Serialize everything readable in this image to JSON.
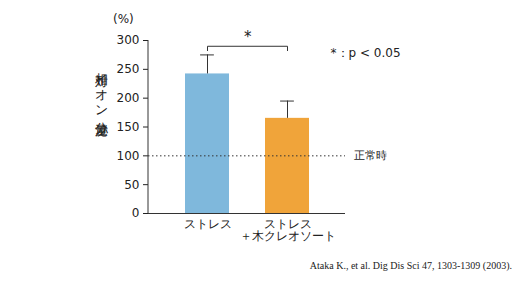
{
  "chart_data": {
    "type": "bar",
    "categories": [
      "ストレス",
      "ストレス\n＋木クレオソート"
    ],
    "values": [
      242,
      165
    ],
    "errors": [
      33,
      30
    ],
    "colors": [
      "#7fb8dc",
      "#f0a43a"
    ],
    "ylim": [
      0,
      300
    ],
    "yticks": [
      0,
      50,
      100,
      150,
      200,
      250,
      300
    ],
    "y_label": "相対イオン分泌量",
    "y_unit": "(%)",
    "reference_line": {
      "value": 100,
      "label": "正常時"
    },
    "significance": {
      "label": "*",
      "note": "*：p < 0.05"
    },
    "source": "Ataka K., et al. Dig Dis Sci 47, 1303-1309 (2003)."
  }
}
